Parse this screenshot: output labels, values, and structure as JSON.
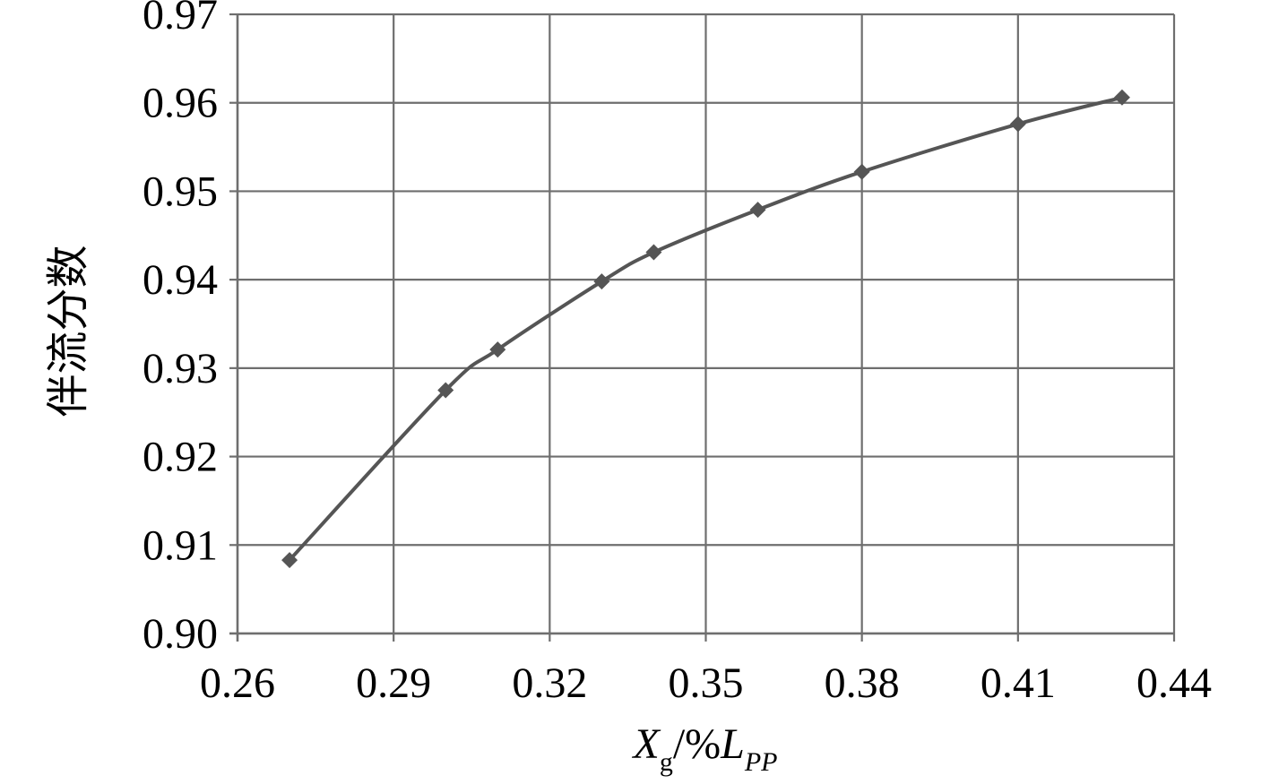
{
  "chart_data": {
    "type": "line",
    "title": "",
    "xlabel": {
      "main": "X",
      "sub": "g",
      "unit_prefix": "/%",
      "unit_main": "L",
      "unit_sub": "PP"
    },
    "ylabel": "伴流分数",
    "xlim": [
      0.26,
      0.44
    ],
    "ylim": [
      0.9,
      0.97
    ],
    "xticks": [
      "0.26",
      "0.29",
      "0.32",
      "0.35",
      "0.38",
      "0.41",
      "0.44"
    ],
    "yticks": [
      "0.90",
      "0.91",
      "0.92",
      "0.93",
      "0.94",
      "0.95",
      "0.96",
      "0.97"
    ],
    "grid": true,
    "legend": "none",
    "series": [
      {
        "color": "#555555",
        "marker": "diamond",
        "x": [
          0.27,
          0.3,
          0.31,
          0.33,
          0.34,
          0.36,
          0.38,
          0.41,
          0.43
        ],
        "y": [
          0.9083,
          0.9275,
          0.9321,
          0.9398,
          0.9431,
          0.9479,
          0.9522,
          0.9576,
          0.9606
        ]
      }
    ]
  }
}
